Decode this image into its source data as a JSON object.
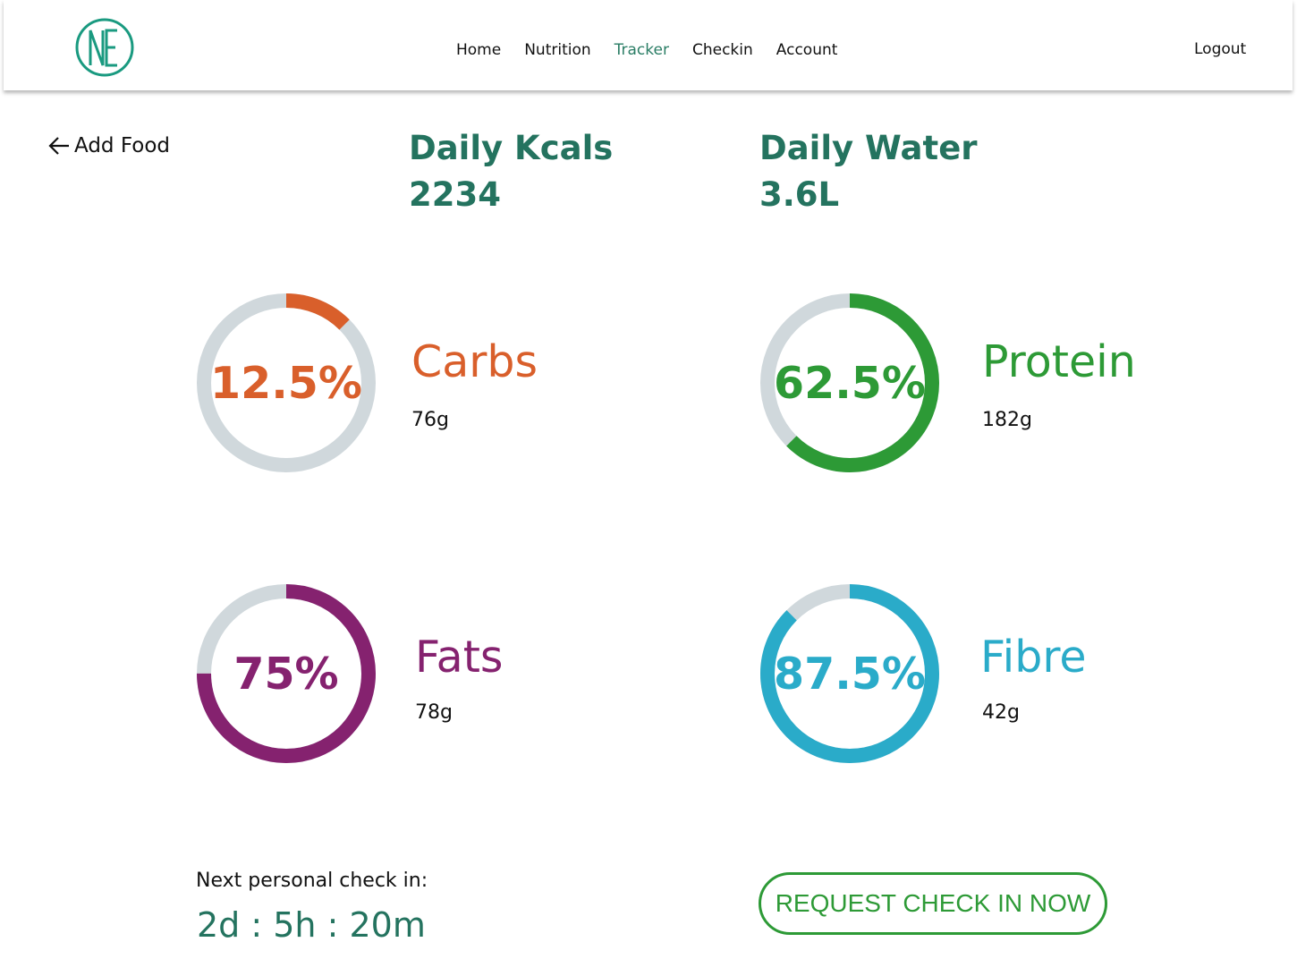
{
  "brand": {
    "logo_text": "NE",
    "color": "#1a9a80"
  },
  "nav": {
    "items": [
      "Home",
      "Nutrition",
      "Tracker",
      "Checkin",
      "Account"
    ],
    "active": "Tracker",
    "logout": "Logout"
  },
  "back": {
    "label": "Add Food"
  },
  "stats": {
    "kcals": {
      "label": "Daily Kcals",
      "value": "2234"
    },
    "water": {
      "label": "Daily Water",
      "value": "3.6L"
    }
  },
  "macros": [
    {
      "name": "Carbs",
      "pct_label": "12.5%",
      "percent": 12.5,
      "amount": "76g",
      "color": "#d95f2b"
    },
    {
      "name": "Protein",
      "pct_label": "62.5%",
      "percent": 62.5,
      "amount": "182g",
      "color": "#2d9a36"
    },
    {
      "name": "Fats",
      "pct_label": "75%",
      "percent": 75,
      "amount": "78g",
      "color": "#85226f"
    },
    {
      "name": "Fibre",
      "pct_label": "87.5%",
      "percent": 87.5,
      "amount": "42g",
      "color": "#2aabc9"
    }
  ],
  "track_color": "#d0d8dc",
  "checkin": {
    "label": "Next personal check in:",
    "countdown": "2d : 5h : 20m",
    "button": "REQUEST CHECK IN NOW"
  }
}
